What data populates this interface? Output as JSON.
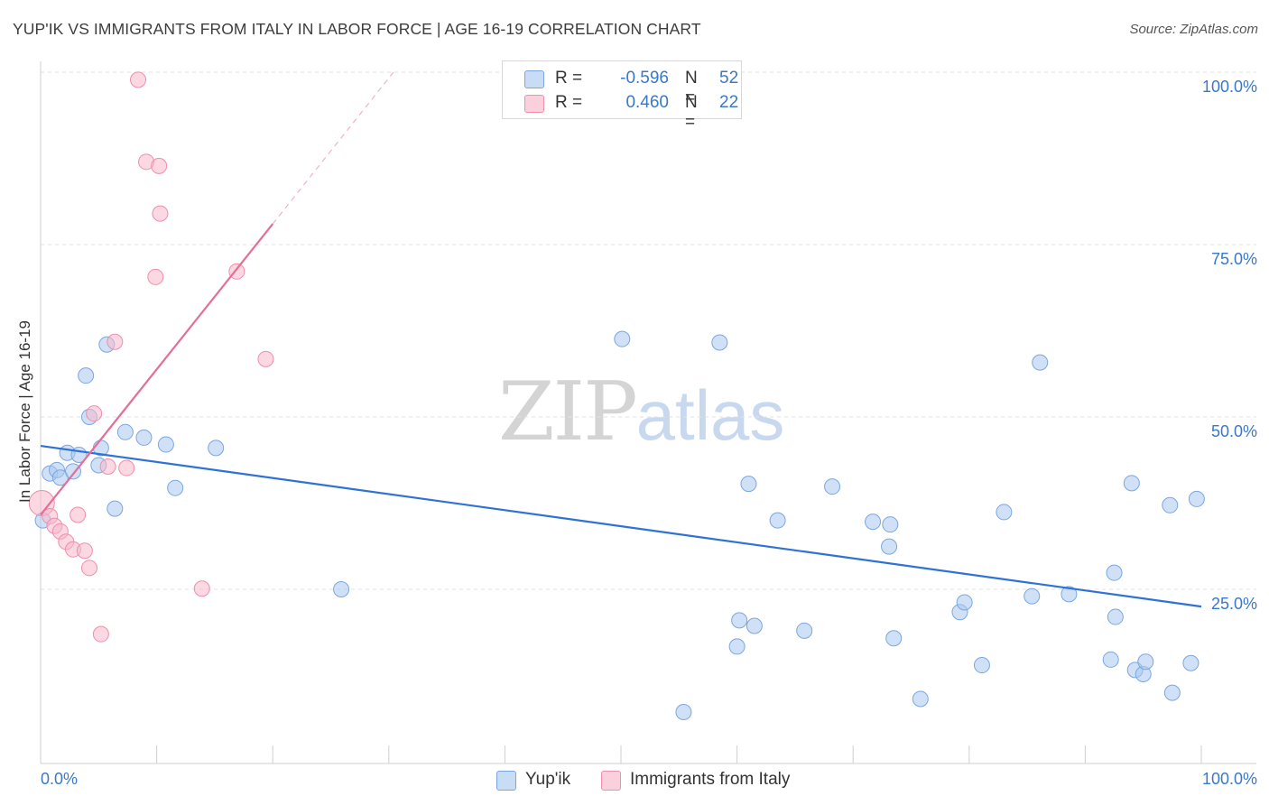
{
  "title": "YUP'IK VS IMMIGRANTS FROM ITALY IN LABOR FORCE | AGE 16-19 CORRELATION CHART",
  "source": "Source: ZipAtlas.com",
  "watermark": {
    "zip": "ZIP",
    "atlas": "atlas"
  },
  "legend": {
    "items": [
      {
        "r_label": "R =",
        "r_value": "-0.596",
        "n_label": "N =",
        "n_value": "52",
        "color": "#aac8f0"
      },
      {
        "r_label": "R =",
        "r_value": "0.460",
        "n_label": "N =",
        "n_value": "22",
        "color": "#f7b8cb"
      }
    ]
  },
  "bottom_legend": [
    {
      "label": "Yup'ik",
      "color": "#aac8f0"
    },
    {
      "label": "Immigrants from Italy",
      "color": "#f7b8cb"
    }
  ],
  "chart_data": {
    "type": "scatter",
    "title": "YUP'IK VS IMMIGRANTS FROM ITALY IN LABOR FORCE | AGE 16-19 CORRELATION CHART",
    "xlabel": "",
    "ylabel": "In Labor Force | Age 16-19",
    "xlim": [
      0,
      100
    ],
    "ylim": [
      0,
      100
    ],
    "x_tick_labels": [
      "0.0%",
      "100.0%"
    ],
    "y_tick_labels": [
      "25.0%",
      "50.0%",
      "75.0%",
      "100.0%"
    ],
    "y_ticks": [
      25,
      50,
      75,
      100
    ],
    "grid": true,
    "series": [
      {
        "name": "Yup'ik",
        "color": "#aac8f0",
        "edge": "#7aa7e0",
        "trend_color": "#2f72d6",
        "trend": {
          "x": [
            0,
            100
          ],
          "y": [
            45.8,
            22.5
          ],
          "dashed_to": null
        },
        "points": [
          [
            0.2,
            35.0
          ],
          [
            0.8,
            41.8
          ],
          [
            1.4,
            42.3
          ],
          [
            1.7,
            41.2
          ],
          [
            2.3,
            44.8
          ],
          [
            2.8,
            42.1
          ],
          [
            3.3,
            44.5
          ],
          [
            3.9,
            56.0
          ],
          [
            4.2,
            50.0
          ],
          [
            5.0,
            43.0
          ],
          [
            5.2,
            45.5
          ],
          [
            5.7,
            60.5
          ],
          [
            6.4,
            36.7
          ],
          [
            7.3,
            47.8
          ],
          [
            8.9,
            47.0
          ],
          [
            10.8,
            46.0
          ],
          [
            11.6,
            39.7
          ],
          [
            15.1,
            45.5
          ],
          [
            25.9,
            25.0
          ],
          [
            50.1,
            61.3
          ],
          [
            55.4,
            7.2
          ],
          [
            58.5,
            60.8
          ],
          [
            60.0,
            16.7
          ],
          [
            60.2,
            20.5
          ],
          [
            61.0,
            40.3
          ],
          [
            61.5,
            19.7
          ],
          [
            63.5,
            35.0
          ],
          [
            65.8,
            19.0
          ],
          [
            68.2,
            39.9
          ],
          [
            71.7,
            34.8
          ],
          [
            73.1,
            31.2
          ],
          [
            73.2,
            34.4
          ],
          [
            73.5,
            17.9
          ],
          [
            75.8,
            9.1
          ],
          [
            79.2,
            21.7
          ],
          [
            79.6,
            23.1
          ],
          [
            81.1,
            14.0
          ],
          [
            83.0,
            36.2
          ],
          [
            85.4,
            24.0
          ],
          [
            86.1,
            57.9
          ],
          [
            88.6,
            24.3
          ],
          [
            92.2,
            14.8
          ],
          [
            92.5,
            27.4
          ],
          [
            92.6,
            21.0
          ],
          [
            94.0,
            40.4
          ],
          [
            94.3,
            13.3
          ],
          [
            95.0,
            12.7
          ],
          [
            95.2,
            14.5
          ],
          [
            97.3,
            37.2
          ],
          [
            97.5,
            10.0
          ],
          [
            99.1,
            14.3
          ],
          [
            99.6,
            38.1
          ]
        ]
      },
      {
        "name": "Immigrants from Italy",
        "color": "#f7b8cb",
        "edge": "#ee8fab",
        "trend_color": "#e46e97",
        "trend": {
          "x": [
            0,
            20.0
          ],
          "y": [
            35.8,
            78.0
          ],
          "dashed_to": [
            30.4,
            100.0
          ]
        },
        "points": [
          [
            0.1,
            37.5
          ],
          [
            0.8,
            35.6
          ],
          [
            1.2,
            34.2
          ],
          [
            1.7,
            33.4
          ],
          [
            2.2,
            31.9
          ],
          [
            2.8,
            30.8
          ],
          [
            3.2,
            35.8
          ],
          [
            3.8,
            30.6
          ],
          [
            4.2,
            28.1
          ],
          [
            4.6,
            50.5
          ],
          [
            5.2,
            18.5
          ],
          [
            5.8,
            42.8
          ],
          [
            6.4,
            60.9
          ],
          [
            7.4,
            42.6
          ],
          [
            8.4,
            98.9
          ],
          [
            9.1,
            87.0
          ],
          [
            9.9,
            70.3
          ],
          [
            10.2,
            86.4
          ],
          [
            10.3,
            79.5
          ],
          [
            13.9,
            25.1
          ],
          [
            16.9,
            71.1
          ],
          [
            19.4,
            58.4
          ]
        ]
      }
    ]
  }
}
